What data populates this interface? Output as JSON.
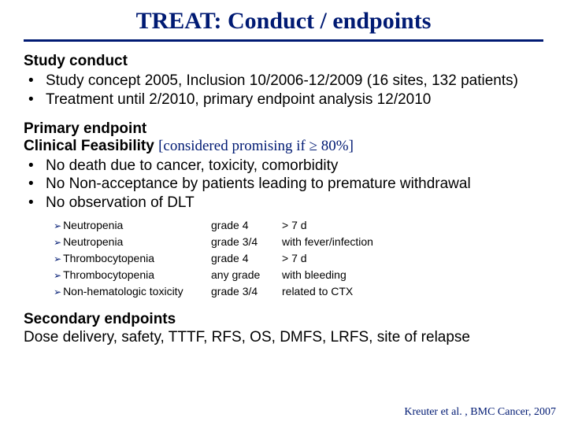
{
  "colors": {
    "accent": "#001a73",
    "text": "#000000",
    "background": "#ffffff"
  },
  "title": "TREAT:  Conduct / endpoints",
  "studyConduct": {
    "heading": "Study conduct",
    "items": [
      "Study concept 2005, Inclusion 10/2006-12/2009 (16 sites, 132 patients)",
      "Treatment until 2/2010, primary endpoint analysis 12/2010"
    ]
  },
  "primary": {
    "heading1": "Primary endpoint",
    "heading2_prefix": "Clinical Feasibility ",
    "heading2_note": "[considered promising if ≥ 80%]",
    "items": [
      "No death due to cancer, toxicity, comorbidity",
      "No Non-acceptance by patients leading to premature withdrawal",
      "No observation of DLT"
    ]
  },
  "dlt": {
    "rows": [
      {
        "condition": "Neutropenia",
        "grade": "grade 4",
        "criterion": "> 7 d"
      },
      {
        "condition": "Neutropenia",
        "grade": "grade 3/4",
        "criterion": "with fever/infection"
      },
      {
        "condition": "Thrombocytopenia",
        "grade": "grade 4",
        "criterion": "> 7 d"
      },
      {
        "condition": "Thrombocytopenia",
        "grade": "any grade",
        "criterion": "with bleeding"
      },
      {
        "condition": "Non-hematologic toxicity",
        "grade": "grade 3/4",
        "criterion": "related to CTX"
      }
    ]
  },
  "secondary": {
    "heading": "Secondary endpoints",
    "body": "Dose delivery, safety, TTTF, RFS, OS, DMFS, LRFS, site of relapse"
  },
  "citation": "Kreuter et al. , BMC Cancer, 2007"
}
